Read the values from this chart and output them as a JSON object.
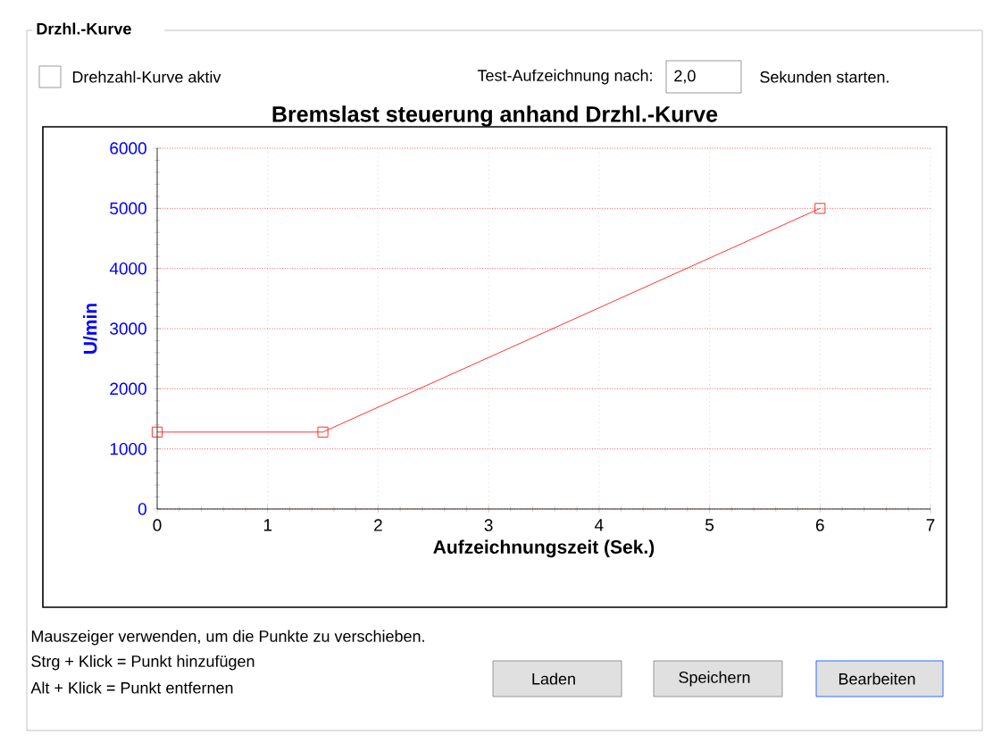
{
  "chart_data": {
    "type": "line",
    "title": "Bremslast steuerung anhand Drzhl.-Kurve",
    "xlabel": "Aufzeichnungszeit (Sek.)",
    "ylabel": "U/min",
    "x": [
      0,
      1.5,
      6
    ],
    "series": [
      {
        "color": "#ff0000",
        "values": [
          1280,
          1280,
          5000
        ]
      }
    ],
    "xlim": [
      0,
      7
    ],
    "ylim": [
      0,
      6000
    ],
    "xticks": [
      0,
      1,
      2,
      3,
      4,
      5,
      6,
      7
    ],
    "yticks": [
      0,
      1000,
      2000,
      3000,
      4000,
      5000,
      6000
    ],
    "grid": true,
    "marker": "square",
    "line_style": "solid",
    "annotations": [
      "Drzhl.-Kurve",
      "Drehzahl-Kurve aktiv",
      "Test-Aufzeichnung nach:",
      "2,0",
      "Sekunden starten.",
      "Mauszeiger verwenden, um die Punkte zu verschieben.",
      "Strg + Klick = Punkt hinzufügen",
      "Alt + Klick = Punkt entfernen",
      "Laden",
      "Speichern",
      "Bearbeiten"
    ]
  }
}
